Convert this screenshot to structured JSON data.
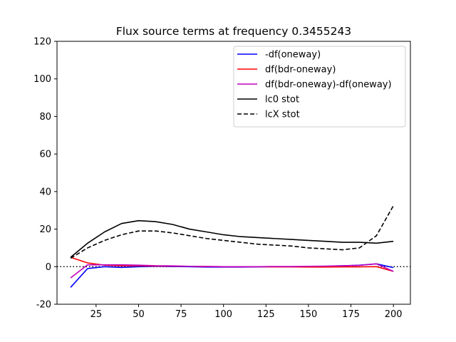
{
  "chart_data": {
    "type": "line",
    "title": "Flux source terms at frequency 0.3455243",
    "xlabel": "",
    "ylabel": "",
    "xlim": [
      2,
      210
    ],
    "ylim": [
      -20,
      120
    ],
    "xticks": [
      25,
      50,
      75,
      100,
      125,
      150,
      175,
      200
    ],
    "yticks": [
      -20,
      0,
      20,
      40,
      60,
      80,
      100,
      120
    ],
    "grid": false,
    "legend_position": "upper right",
    "reference_line": {
      "y": 0,
      "style": "dotted",
      "color": "#000000"
    },
    "series": [
      {
        "name": "-df(oneway)",
        "color": "#0000ff",
        "dash": "solid",
        "x": [
          10,
          20,
          30,
          40,
          50,
          60,
          70,
          80,
          90,
          100,
          110,
          120,
          130,
          140,
          150,
          160,
          170,
          180,
          190,
          200
        ],
        "y": [
          -11,
          -1,
          0,
          -0.4,
          0,
          0.2,
          0.1,
          0,
          -0.2,
          -0.2,
          -0.2,
          -0.1,
          0,
          0,
          0,
          0.1,
          0.4,
          0.8,
          1.5,
          -0.5
        ]
      },
      {
        "name": "df(bdr-oneway)",
        "color": "#ff0000",
        "dash": "solid",
        "x": [
          10,
          20,
          30,
          40,
          50,
          60,
          70,
          80,
          90,
          100,
          110,
          120,
          130,
          140,
          150,
          160,
          170,
          180,
          190,
          200
        ],
        "y": [
          5,
          2,
          0.8,
          0.5,
          0.5,
          0.3,
          0.3,
          0.2,
          0.1,
          0,
          0,
          0,
          -0.1,
          -0.1,
          -0.2,
          -0.2,
          -0.1,
          -0.1,
          0,
          -2.5
        ]
      },
      {
        "name": "df(bdr-oneway)-df(oneway)",
        "color": "#bf00bf",
        "dash": "solid",
        "x": [
          10,
          20,
          30,
          40,
          50,
          60,
          70,
          80,
          90,
          100,
          110,
          120,
          130,
          140,
          150,
          160,
          170,
          180,
          190,
          200
        ],
        "y": [
          -6,
          1,
          1,
          1,
          0.8,
          0.5,
          0.4,
          0.2,
          0.1,
          0,
          0,
          0,
          0.1,
          0.1,
          0.2,
          0.3,
          0.5,
          0.7,
          1.5,
          -2.5
        ]
      },
      {
        "name": "lc0 stot",
        "color": "#000000",
        "dash": "solid",
        "x": [
          10,
          20,
          30,
          40,
          50,
          60,
          70,
          80,
          90,
          100,
          110,
          120,
          130,
          140,
          150,
          160,
          170,
          180,
          190,
          200
        ],
        "y": [
          5,
          12.5,
          18.5,
          23,
          24.5,
          24,
          22.5,
          20,
          18.5,
          17,
          16,
          15.5,
          15,
          14.5,
          14,
          13.5,
          13,
          13,
          12.5,
          13.5
        ]
      },
      {
        "name": "lcX stot",
        "color": "#000000",
        "dash": "dashed",
        "x": [
          10,
          20,
          30,
          40,
          50,
          60,
          70,
          80,
          90,
          100,
          110,
          120,
          130,
          140,
          150,
          160,
          170,
          180,
          190,
          200
        ],
        "y": [
          4.5,
          10,
          14,
          17,
          19,
          19,
          18,
          16.5,
          15,
          14,
          13,
          12,
          11.5,
          11,
          10,
          9.5,
          9,
          10,
          16.5,
          32.5
        ]
      }
    ]
  }
}
